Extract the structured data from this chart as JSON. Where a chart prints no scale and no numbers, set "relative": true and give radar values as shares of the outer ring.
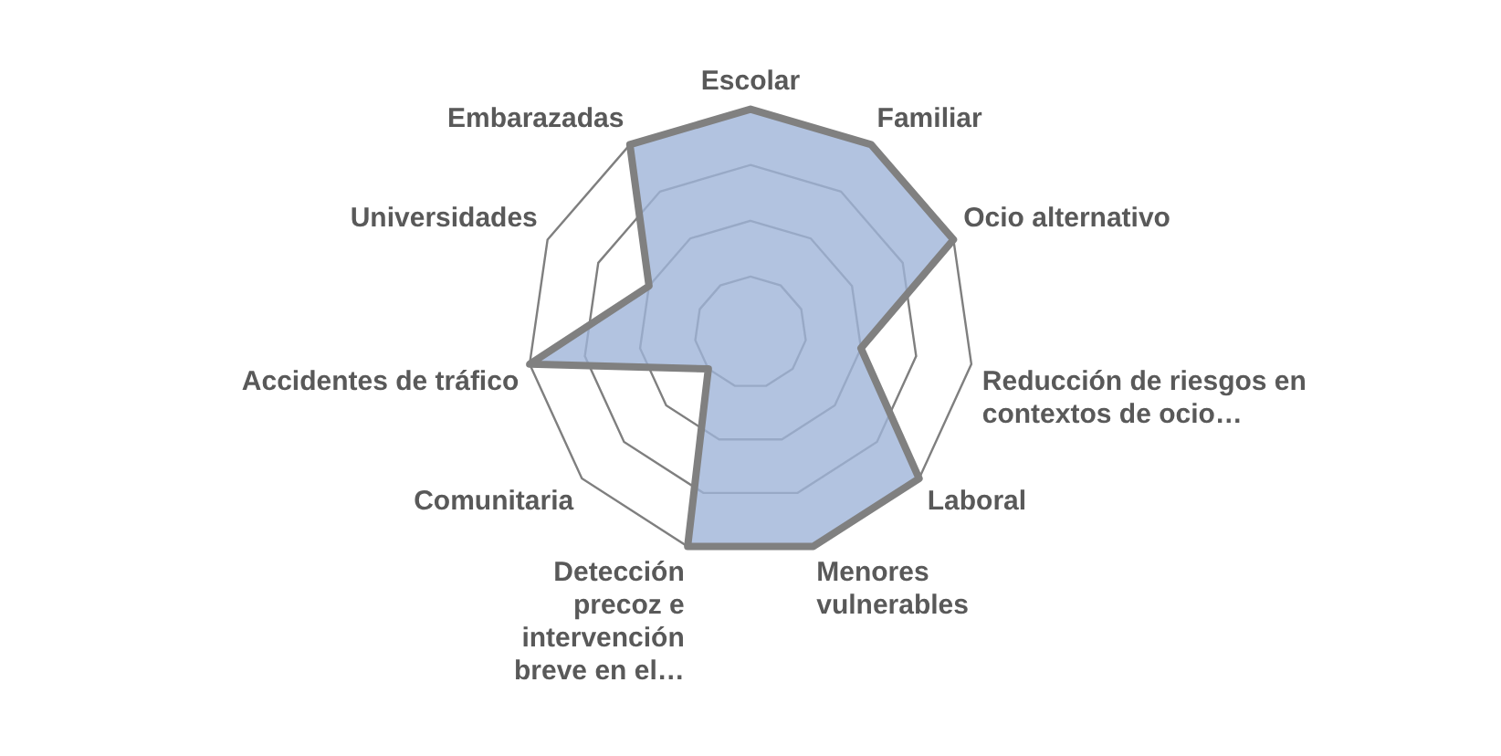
{
  "chart_data": {
    "type": "radar",
    "relative": true,
    "categories": [
      "Escolar",
      "Familiar",
      "Ocio alternativo",
      "Reducción de riesgos en contextos de ocio…",
      "Laboral",
      "Menores vulnerables",
      "Detección precoz e intervención breve en el…",
      "Comunitaria",
      "Accidentes de tráfico",
      "Universidades",
      "Embarazadas"
    ],
    "series": [
      {
        "color": "#9fb4d8",
        "values": [
          1,
          1,
          1,
          0.5,
          1,
          1,
          1,
          0.25,
          1,
          0.5,
          1
        ]
      }
    ],
    "grid": true,
    "legend": false,
    "marker": "none"
  }
}
